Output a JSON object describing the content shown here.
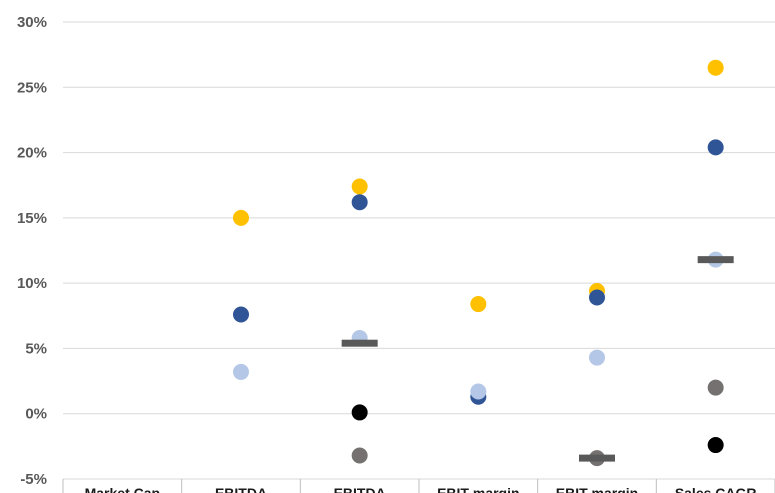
{
  "chart_data": {
    "type": "scatter",
    "title": "",
    "xlabel": "",
    "ylabel": "",
    "y_unit": "%",
    "ylim": [
      -5,
      30
    ],
    "yticks": [
      -5,
      0,
      5,
      10,
      15,
      20,
      25,
      30
    ],
    "grid": true,
    "categories": [
      "Market Cap",
      "EBITDA",
      "EBITDA",
      "EBIT margin",
      "EBIT margin",
      "Sales CAGR"
    ],
    "series": [
      {
        "color": "#ffc000",
        "marker": "circle",
        "values": [
          null,
          15.0,
          17.4,
          8.4,
          9.4,
          26.5
        ]
      },
      {
        "color": "#2f5597",
        "marker": "circle",
        "values": [
          null,
          7.6,
          16.2,
          1.3,
          8.9,
          20.4
        ]
      },
      {
        "color": "#b4c7e7",
        "marker": "circle",
        "values": [
          null,
          3.2,
          5.8,
          1.7,
          4.3,
          11.8
        ]
      },
      {
        "color": "#000000",
        "marker": "circle",
        "values": [
          null,
          null,
          0.1,
          null,
          null,
          -2.4
        ]
      },
      {
        "color": "#767171",
        "marker": "circle",
        "values": [
          null,
          null,
          -3.2,
          null,
          -3.4,
          2.0
        ]
      },
      {
        "color": "#595959",
        "marker": "dash",
        "values": [
          null,
          null,
          5.4,
          null,
          -3.4,
          11.8
        ]
      }
    ]
  }
}
